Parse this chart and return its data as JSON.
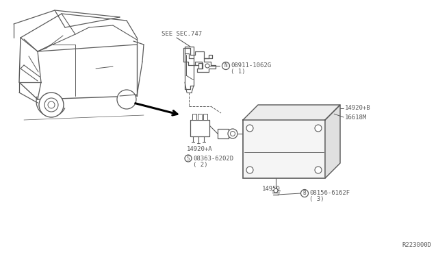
{
  "bg_color": "#ffffff",
  "line_color": "#5a5a5a",
  "text_color": "#5a5a5a",
  "diagram_ref": "R223000D",
  "see_sec": "SEE SEC.747",
  "part1_label": "08911-1062G",
  "part1_sub": "( 1)",
  "part1_sym": "N",
  "part2a_label": "14920+A",
  "part2b_label": "14920+B",
  "part3_label": "08363-6202D",
  "part3_sub": "( 2)",
  "part3_sym": "S",
  "part4_label": "16618M",
  "part5_label": "14950",
  "part6_label": "08156-6162F",
  "part6_sub": "( 3)",
  "part6_sym": "B",
  "car_color": "#5a5a5a",
  "arrow_color": "#000000"
}
